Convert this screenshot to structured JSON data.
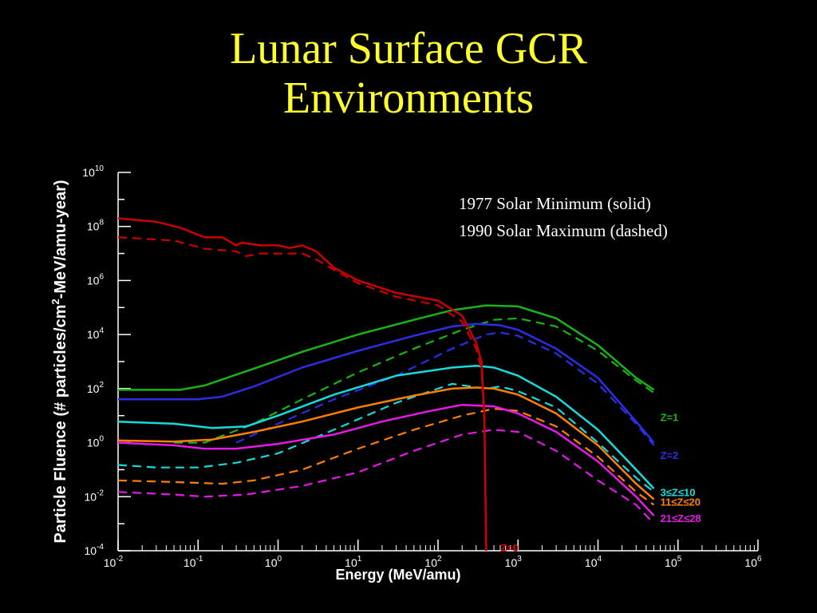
{
  "slide": {
    "title_line1": "Lunar Surface GCR",
    "title_line2": "Environments"
  },
  "chart_data": {
    "type": "line",
    "xscale": "log",
    "yscale": "log",
    "xlim": [
      0.01,
      1000000
    ],
    "ylim": [
      0.0001,
      10000000000
    ],
    "xlabel": "Energy (MeV/amu)",
    "ylabel_parts": [
      "Particle Fluence (# particles/cm",
      "2",
      "-MeV/amu-year)"
    ],
    "x_ticks": [
      {
        "base": "10",
        "exp": "-2"
      },
      {
        "base": "10",
        "exp": "-1"
      },
      {
        "base": "10",
        "exp": "0"
      },
      {
        "base": "10",
        "exp": "1"
      },
      {
        "base": "10",
        "exp": "2"
      },
      {
        "base": "10",
        "exp": "3"
      },
      {
        "base": "10",
        "exp": "4"
      },
      {
        "base": "10",
        "exp": "5"
      },
      {
        "base": "10",
        "exp": "6"
      }
    ],
    "y_ticks": [
      {
        "base": "10",
        "exp": "-4"
      },
      {
        "base": "10",
        "exp": "-2"
      },
      {
        "base": "10",
        "exp": "0"
      },
      {
        "base": "10",
        "exp": "2"
      },
      {
        "base": "10",
        "exp": "4"
      },
      {
        "base": "10",
        "exp": "6"
      },
      {
        "base": "10",
        "exp": "8"
      },
      {
        "base": "10",
        "exp": "10"
      }
    ],
    "legend_lines": [
      "1977 Solar Minimum (solid)",
      "1990 Solar Maximum (dashed)"
    ],
    "legend_placement": "top-right",
    "series": [
      {
        "name": "Z=1",
        "color": "#18b418",
        "label_pos": [
          50000,
          9
        ],
        "solid": [
          [
            0.01,
            90
          ],
          [
            0.06,
            90
          ],
          [
            0.12,
            130
          ],
          [
            0.5,
            550
          ],
          [
            2,
            2300
          ],
          [
            10,
            10000
          ],
          [
            50,
            35000
          ],
          [
            150,
            80000
          ],
          [
            400,
            120000
          ],
          [
            1000,
            110000
          ],
          [
            3000,
            40000
          ],
          [
            10000,
            4000
          ],
          [
            30000,
            250
          ],
          [
            50000,
            90
          ]
        ],
        "dashed": [
          [
            0.05,
            1
          ],
          [
            0.12,
            1
          ],
          [
            0.5,
            5
          ],
          [
            2,
            40
          ],
          [
            10,
            400
          ],
          [
            50,
            3000
          ],
          [
            200,
            15000
          ],
          [
            500,
            35000
          ],
          [
            1000,
            40000
          ],
          [
            3000,
            20000
          ],
          [
            10000,
            2500
          ],
          [
            30000,
            200
          ],
          [
            50000,
            70
          ]
        ]
      },
      {
        "name": "Z=2",
        "color": "#2d2de6",
        "label_pos": [
          50000,
          0.35
        ],
        "solid": [
          [
            0.01,
            40
          ],
          [
            0.1,
            40
          ],
          [
            0.2,
            50
          ],
          [
            0.5,
            120
          ],
          [
            2,
            600
          ],
          [
            10,
            2500
          ],
          [
            50,
            9000
          ],
          [
            150,
            20000
          ],
          [
            300,
            25000
          ],
          [
            600,
            22000
          ],
          [
            1000,
            15000
          ],
          [
            3000,
            3000
          ],
          [
            10000,
            250
          ],
          [
            30000,
            6
          ],
          [
            50000,
            1
          ]
        ],
        "dashed": [
          [
            0.3,
            1
          ],
          [
            1,
            5
          ],
          [
            5,
            40
          ],
          [
            30,
            300
          ],
          [
            150,
            3000
          ],
          [
            400,
            10000
          ],
          [
            600,
            12000
          ],
          [
            1000,
            9000
          ],
          [
            3000,
            2000
          ],
          [
            10000,
            150
          ],
          [
            30000,
            5
          ],
          [
            50000,
            0.8
          ]
        ]
      },
      {
        "name": "3≤Z≤10",
        "color": "#14dcdc",
        "label_pos": [
          50000,
          0.015
        ],
        "solid": [
          [
            0.01,
            6
          ],
          [
            0.05,
            5
          ],
          [
            0.15,
            3.5
          ],
          [
            0.4,
            4
          ],
          [
            1,
            10
          ],
          [
            5,
            60
          ],
          [
            30,
            300
          ],
          [
            150,
            600
          ],
          [
            300,
            700
          ],
          [
            500,
            600
          ],
          [
            1000,
            300
          ],
          [
            3000,
            50
          ],
          [
            10000,
            3
          ],
          [
            30000,
            0.1
          ],
          [
            50000,
            0.02
          ]
        ],
        "dashed": [
          [
            0.01,
            0.15
          ],
          [
            0.03,
            0.12
          ],
          [
            0.1,
            0.12
          ],
          [
            0.3,
            0.18
          ],
          [
            1,
            0.4
          ],
          [
            5,
            3
          ],
          [
            30,
            30
          ],
          [
            150,
            150
          ],
          [
            400,
            100
          ],
          [
            600,
            120
          ],
          [
            1000,
            80
          ],
          [
            3000,
            20
          ],
          [
            10000,
            1
          ],
          [
            30000,
            0.05
          ],
          [
            50000,
            0.015
          ]
        ]
      },
      {
        "name": "11≤Z≤20",
        "color": "#ff7f00",
        "label_pos": [
          50000,
          0.0065
        ],
        "solid": [
          [
            0.01,
            1.2
          ],
          [
            0.05,
            1.1
          ],
          [
            0.15,
            1.3
          ],
          [
            0.5,
            2.5
          ],
          [
            2,
            6
          ],
          [
            10,
            20
          ],
          [
            50,
            55
          ],
          [
            150,
            100
          ],
          [
            300,
            110
          ],
          [
            500,
            100
          ],
          [
            1000,
            60
          ],
          [
            3000,
            12
          ],
          [
            10000,
            0.8
          ],
          [
            30000,
            0.03
          ],
          [
            50000,
            0.008
          ]
        ],
        "dashed": [
          [
            0.01,
            0.04
          ],
          [
            0.05,
            0.035
          ],
          [
            0.2,
            0.03
          ],
          [
            0.5,
            0.04
          ],
          [
            2,
            0.1
          ],
          [
            10,
            0.6
          ],
          [
            50,
            3
          ],
          [
            200,
            10
          ],
          [
            500,
            18
          ],
          [
            1000,
            15
          ],
          [
            3000,
            4
          ],
          [
            10000,
            0.3
          ],
          [
            30000,
            0.015
          ],
          [
            50000,
            0.005
          ]
        ]
      },
      {
        "name": "21≤Z≤28",
        "color": "#e619e6",
        "label_pos": [
          50000,
          0.0016
        ],
        "solid": [
          [
            0.01,
            1
          ],
          [
            0.05,
            0.8
          ],
          [
            0.12,
            0.6
          ],
          [
            0.3,
            0.6
          ],
          [
            1,
            0.9
          ],
          [
            5,
            2
          ],
          [
            20,
            6
          ],
          [
            80,
            15
          ],
          [
            200,
            25
          ],
          [
            500,
            22
          ],
          [
            1000,
            12
          ],
          [
            3000,
            2.5
          ],
          [
            10000,
            0.2
          ],
          [
            30000,
            0.01
          ],
          [
            50000,
            0.002
          ]
        ],
        "dashed": [
          [
            0.01,
            0.015
          ],
          [
            0.05,
            0.012
          ],
          [
            0.12,
            0.01
          ],
          [
            0.4,
            0.012
          ],
          [
            2,
            0.025
          ],
          [
            10,
            0.08
          ],
          [
            50,
            0.5
          ],
          [
            200,
            2
          ],
          [
            500,
            3
          ],
          [
            1000,
            2.5
          ],
          [
            3000,
            0.5
          ],
          [
            10000,
            0.04
          ],
          [
            30000,
            0.005
          ],
          [
            50000,
            0.001
          ]
        ]
      },
      {
        "name": "Z=0",
        "color": "#cc0000",
        "label_pos": [
          500,
          0.00013
        ],
        "solid": [
          [
            0.01,
            200000000
          ],
          [
            0.03,
            150000000
          ],
          [
            0.06,
            90000000
          ],
          [
            0.12,
            40000000
          ],
          [
            0.2,
            40000000
          ],
          [
            0.3,
            20000000
          ],
          [
            0.35,
            25000000
          ],
          [
            0.6,
            20000000
          ],
          [
            1,
            20000000
          ],
          [
            1.4,
            16000000
          ],
          [
            2,
            20000000
          ],
          [
            3,
            12000000
          ],
          [
            5,
            3000000
          ],
          [
            10,
            1000000
          ],
          [
            30,
            350000
          ],
          [
            100,
            180000
          ],
          [
            200,
            50000
          ],
          [
            300,
            5000
          ],
          [
            350,
            1000
          ],
          [
            380,
            10
          ],
          [
            400,
            0.0001
          ]
        ],
        "dashed": [
          [
            0.01,
            40000000
          ],
          [
            0.05,
            30000000
          ],
          [
            0.12,
            15000000
          ],
          [
            0.3,
            12000000
          ],
          [
            0.4,
            8000000
          ],
          [
            0.6,
            10000000
          ],
          [
            1,
            10000000
          ],
          [
            2,
            10000000
          ],
          [
            3,
            6000000
          ],
          [
            5,
            2500000
          ],
          [
            10,
            800000
          ],
          [
            30,
            250000
          ],
          [
            100,
            120000
          ],
          [
            200,
            30000
          ],
          [
            300,
            3000
          ],
          [
            350,
            500
          ],
          [
            380,
            5
          ],
          [
            400,
            0.0001
          ]
        ]
      }
    ]
  }
}
